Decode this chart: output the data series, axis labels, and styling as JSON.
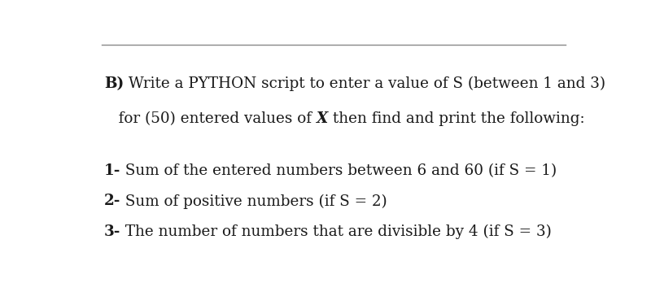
{
  "background_color": "#ffffff",
  "line_color": "#888888",
  "line_width": 1.0,
  "text_color": "#1a1a1a",
  "font_size": 13.2,
  "bold_size": 13.2,
  "line1": "B) Write a PYTHON script to enter a value of S (between 1 and 3)",
  "line2a": "   for (50) entered values of ",
  "line2b": "X",
  "line2c": " then find and print the following:",
  "item1a": "1-",
  "item1b": " Sum of the entered numbers between 6 and 60 (if S = 1)",
  "item2a": "2-",
  "item2b": " Sum of positive numbers (if S = 2)",
  "item3a": "3-",
  "item3b": " The number of numbers that are divisible by 4 (if S = 3)"
}
